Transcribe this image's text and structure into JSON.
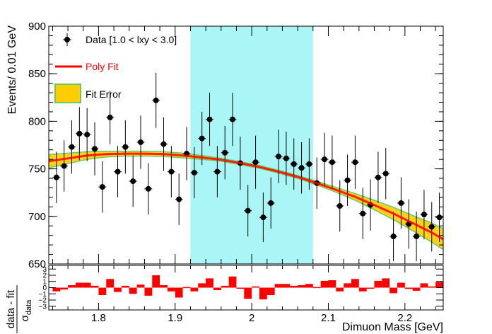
{
  "chart_data": [
    {
      "type": "scatter",
      "xlabel": "Dimuon Mass [GeV]",
      "ylabel": "Events/ 0.01 GeV",
      "xlim": [
        1.735,
        2.25
      ],
      "ylim": [
        650,
        900
      ],
      "xticks": [
        "1.8",
        "1.9",
        "2",
        "2.1",
        "2.2"
      ],
      "yticks": [
        "650",
        "700",
        "750",
        "800",
        "850",
        "900"
      ],
      "legend_position": "top-left",
      "signal_window": {
        "xmin": 1.92,
        "xmax": 2.08,
        "color": "#aaf5f5"
      },
      "series": [
        {
          "name": "Data [1.0 < lxy < 3.0]",
          "kind": "points",
          "color": "#000000",
          "x": [
            1.745,
            1.755,
            1.765,
            1.775,
            1.785,
            1.795,
            1.805,
            1.815,
            1.825,
            1.835,
            1.845,
            1.855,
            1.865,
            1.875,
            1.885,
            1.895,
            1.905,
            1.915,
            1.925,
            1.935,
            1.945,
            1.955,
            1.965,
            1.975,
            1.985,
            1.995,
            2.005,
            2.015,
            2.025,
            2.035,
            2.045,
            2.055,
            2.065,
            2.075,
            2.085,
            2.095,
            2.105,
            2.115,
            2.125,
            2.135,
            2.145,
            2.155,
            2.165,
            2.175,
            2.185,
            2.195,
            2.205,
            2.215,
            2.225,
            2.235,
            2.245
          ],
          "y": [
            741,
            753,
            773,
            787,
            786,
            771,
            731,
            804,
            747,
            773,
            737,
            778,
            729,
            822,
            776,
            747,
            718,
            766,
            746,
            782,
            802,
            747,
            767,
            802,
            756,
            706,
            757,
            699,
            714,
            763,
            761,
            755,
            751,
            755,
            735,
            760,
            757,
            711,
            738,
            757,
            703,
            712,
            741,
            745,
            679,
            714,
            692,
            679,
            702,
            689,
            699
          ],
          "yerr": [
            27,
            27,
            28,
            28,
            28,
            28,
            27,
            28,
            27,
            28,
            27,
            28,
            27,
            29,
            28,
            27,
            27,
            28,
            27,
            28,
            28,
            27,
            28,
            28,
            28,
            27,
            28,
            26,
            27,
            28,
            28,
            27,
            27,
            27,
            27,
            28,
            28,
            27,
            27,
            28,
            27,
            27,
            27,
            27,
            26,
            27,
            26,
            26,
            26,
            26,
            26
          ]
        },
        {
          "name": "Poly Fit",
          "kind": "line",
          "color": "#ff0000",
          "x": [
            1.735,
            1.76,
            1.785,
            1.81,
            1.835,
            1.86,
            1.885,
            1.91,
            1.935,
            1.96,
            1.985,
            2.01,
            2.035,
            2.06,
            2.085,
            2.11,
            2.135,
            2.16,
            2.185,
            2.21,
            2.235,
            2.25
          ],
          "y": [
            758,
            761,
            764,
            765.5,
            766,
            766,
            765.5,
            764,
            762,
            759.5,
            756,
            752,
            747,
            741.5,
            735,
            728,
            720.5,
            712,
            703,
            693,
            683,
            676
          ]
        },
        {
          "name": "Fit Error",
          "kind": "band",
          "color": "#ffcc00",
          "edge_color": "#66cc66",
          "half_width": [
            7,
            5.5,
            4,
            3,
            2.5,
            2.5,
            2.5,
            2.5,
            2,
            1.5,
            1.5,
            1.5,
            1.5,
            1.5,
            2,
            2.5,
            3.5,
            5,
            6.5,
            8,
            10,
            11
          ]
        }
      ]
    },
    {
      "type": "bar",
      "ylabel": "data - fit / σ_data",
      "ylim": [
        -3.6,
        3.6
      ],
      "yticks": [
        "-3",
        "-2",
        "-1",
        "0",
        "1",
        "2",
        "3"
      ],
      "color": "#ff0000",
      "x": [
        1.745,
        1.755,
        1.765,
        1.775,
        1.785,
        1.795,
        1.805,
        1.815,
        1.825,
        1.835,
        1.845,
        1.855,
        1.865,
        1.875,
        1.885,
        1.895,
        1.905,
        1.915,
        1.925,
        1.935,
        1.945,
        1.955,
        1.965,
        1.975,
        1.985,
        1.995,
        2.005,
        2.015,
        2.025,
        2.035,
        2.045,
        2.055,
        2.065,
        2.075,
        2.085,
        2.095,
        2.105,
        2.115,
        2.125,
        2.135,
        2.145,
        2.155,
        2.165,
        2.175,
        2.185,
        2.195,
        2.205,
        2.215,
        2.225,
        2.235,
        2.245
      ],
      "values": [
        -0.6,
        -0.3,
        0.4,
        0.8,
        0.8,
        0.3,
        -1.2,
        1.4,
        -0.7,
        0.3,
        -1.0,
        0.5,
        -1.3,
        2.0,
        0.4,
        -0.6,
        -1.6,
        0.1,
        -0.6,
        0.7,
        1.5,
        -0.4,
        0.3,
        1.8,
        0.0,
        -1.8,
        0.2,
        -1.9,
        -1.2,
        0.6,
        0.6,
        0.3,
        0.4,
        0.6,
        0.1,
        1.1,
        1.2,
        -0.6,
        0.7,
        1.4,
        -0.6,
        0.0,
        1.1,
        1.5,
        -0.9,
        0.8,
        -0.2,
        -0.5,
        0.7,
        0.2,
        0.9
      ]
    }
  ]
}
